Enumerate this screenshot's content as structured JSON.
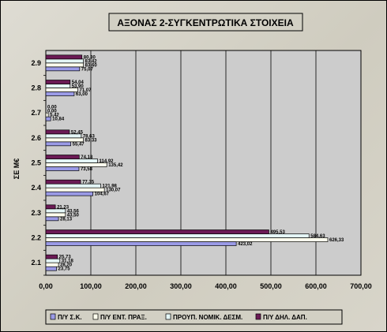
{
  "chart_data": {
    "type": "bar",
    "orientation": "horizontal",
    "title": "ΑΞΟΝΑΣ 2-ΣΥΓΚΕΝΤΡΩΤΙΚΑ ΣΤΟΙΧΕΙΑ",
    "ylabel": "ΣΕ Μ€",
    "xlabel": "",
    "xlim": [
      0,
      700
    ],
    "x_ticks": [
      "0,00",
      "100,00",
      "200,00",
      "300,00",
      "400,00",
      "500,00",
      "600,00",
      "700,00"
    ],
    "categories": [
      "2.1",
      "2.2",
      "2.3",
      "2.4",
      "2.5",
      "2.6",
      "2.7",
      "2.8",
      "2.9"
    ],
    "grid": true,
    "legend_position": "bottom",
    "series": [
      {
        "name": "Π/Υ Σ.Κ.",
        "color": "#9a9ae6",
        "values": [
          23.75,
          423.02,
          28.13,
          104.67,
          73.58,
          55.47,
          10.84,
          63.0,
          75.07
        ],
        "labels": [
          "23,75",
          "423,02",
          "28,13",
          "104,67",
          "73,58",
          "55,47",
          "10,84",
          "63,00",
          "75,07"
        ]
      },
      {
        "name": "Π/Υ ΕΝΤ. ΠΡΑΞ.",
        "color": "#ffffee",
        "values": [
          28.2,
          626.33,
          43.5,
          130.07,
          135.42,
          83.33,
          5.42,
          71.07,
          83.6
        ],
        "labels": [
          "28,20",
          "626,33",
          "43,50",
          "130,07",
          "135,42",
          "83,33",
          "5,42",
          "71,07",
          "83,60"
        ]
      },
      {
        "name": "ΠΡΟΥΠ. ΝΟΜΙΚ. ΔΕΣΜ.",
        "color": "#e4f6f6",
        "values": [
          31.18,
          584.63,
          43.56,
          121.98,
          114.92,
          78.63,
          0.0,
          53.9,
          83.42
        ],
        "labels": [
          "31,18",
          "584,63",
          "43,56",
          "121,98",
          "114,92",
          "78,63",
          "0,00",
          "53,90",
          "83,42"
        ]
      },
      {
        "name": "Π/Υ ΔΗΛ. ΔΑΠ.",
        "color": "#6b1a55",
        "values": [
          25.73,
          495.53,
          21.23,
          77.35,
          74.18,
          52.45,
          0.0,
          54.04,
          80.3
        ],
        "labels": [
          "25,73",
          "495,53",
          "21,23",
          "77,35",
          "74,18",
          "52,45",
          "0,00",
          "54,04",
          "80,30"
        ]
      }
    ]
  }
}
